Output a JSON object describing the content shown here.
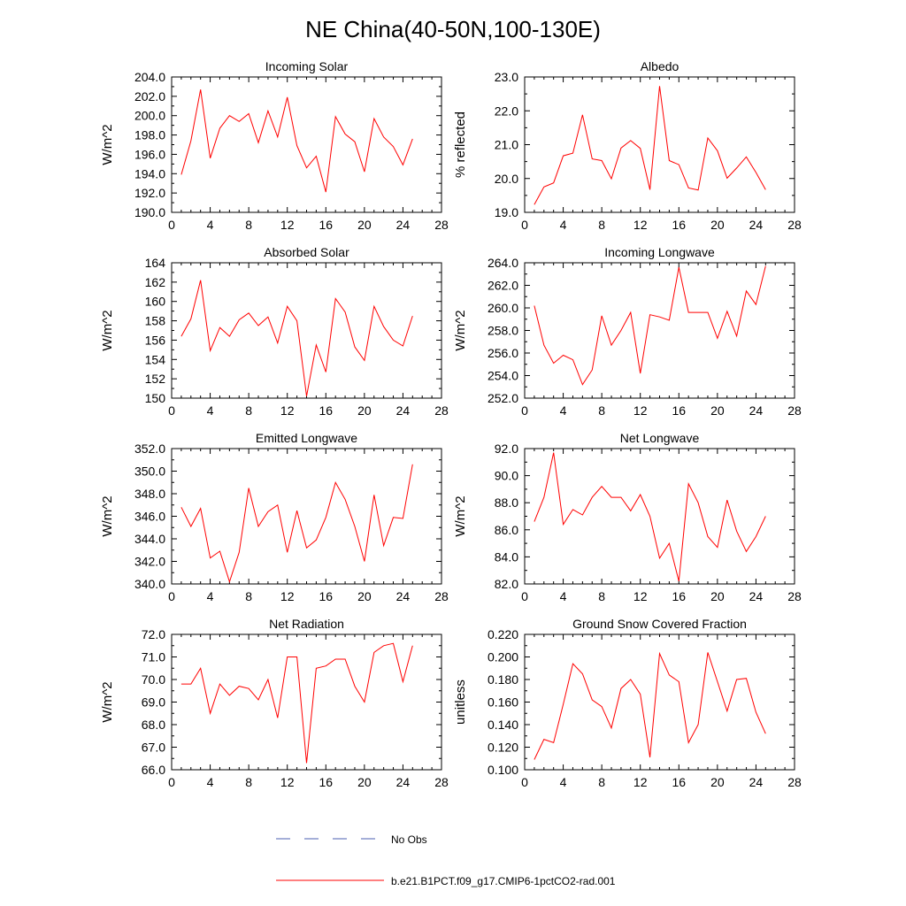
{
  "title": "NE China(40-50N,100-130E)",
  "colors": {
    "model": "#ff0000",
    "obs": "#4b5fb0",
    "axis": "#000000"
  },
  "legend": [
    {
      "label": "No Obs",
      "style": "dashed",
      "color": "#4b5fb0"
    },
    {
      "label": "b.e21.B1PCT.f09_g17.CMIP6-1pctCO2-rad.001",
      "style": "solid",
      "color": "#ff0000"
    }
  ],
  "chart_data": [
    {
      "type": "line",
      "title": "Incoming Solar",
      "xlabel": "",
      "ylabel": "W/m^2",
      "xlim": [
        0,
        28
      ],
      "ylim": [
        190,
        204
      ],
      "grid": false,
      "xticks": [
        "0",
        "4",
        "8",
        "12",
        "16",
        "20",
        "24",
        "28"
      ],
      "yticks": [
        "190.0",
        "192.0",
        "194.0",
        "196.0",
        "198.0",
        "200.0",
        "202.0",
        "204.0"
      ],
      "series": [
        {
          "x": [
            1,
            2,
            3,
            4,
            5,
            6,
            7,
            8,
            9,
            10,
            11,
            12,
            13,
            14,
            15,
            16,
            17,
            18,
            19,
            20,
            21,
            22,
            23,
            24,
            25
          ],
          "values": [
            193.9,
            197.4,
            202.7,
            195.6,
            198.7,
            200.0,
            199.4,
            200.2,
            197.2,
            200.5,
            197.8,
            201.9,
            196.9,
            194.6,
            195.8,
            192.1,
            199.9,
            198.1,
            197.3,
            194.2,
            199.7,
            197.8,
            196.8,
            194.9,
            197.6
          ]
        }
      ]
    },
    {
      "type": "line",
      "title": "Albedo",
      "xlabel": "",
      "ylabel": "% reflected",
      "xlim": [
        0,
        28
      ],
      "ylim": [
        19,
        23
      ],
      "grid": false,
      "xticks": [
        "0",
        "4",
        "8",
        "12",
        "16",
        "20",
        "24",
        "28"
      ],
      "yticks": [
        "19.0",
        "20.0",
        "21.0",
        "22.0",
        "23.0"
      ],
      "series": [
        {
          "x": [
            1,
            2,
            3,
            4,
            5,
            6,
            7,
            8,
            9,
            10,
            11,
            12,
            13,
            14,
            15,
            16,
            17,
            18,
            19,
            20,
            21,
            22,
            23,
            24,
            25
          ],
          "values": [
            19.23,
            19.75,
            19.87,
            20.67,
            20.75,
            21.88,
            20.58,
            20.53,
            19.99,
            20.9,
            21.12,
            20.89,
            19.67,
            22.73,
            20.53,
            20.41,
            19.72,
            19.66,
            21.2,
            20.82,
            20.01,
            20.31,
            20.64,
            20.18,
            19.67
          ]
        }
      ]
    },
    {
      "type": "line",
      "title": "Absorbed Solar",
      "xlabel": "",
      "ylabel": "W/m^2",
      "xlim": [
        0,
        28
      ],
      "ylim": [
        150,
        164
      ],
      "grid": false,
      "xticks": [
        "0",
        "4",
        "8",
        "12",
        "16",
        "20",
        "24",
        "28"
      ],
      "yticks": [
        "150",
        "152",
        "154",
        "156",
        "158",
        "160",
        "162",
        "164"
      ],
      "series": [
        {
          "x": [
            1,
            2,
            3,
            4,
            5,
            6,
            7,
            8,
            9,
            10,
            11,
            12,
            13,
            14,
            15,
            16,
            17,
            18,
            19,
            20,
            21,
            22,
            23,
            24,
            25
          ],
          "values": [
            156.4,
            158.2,
            162.2,
            154.9,
            157.3,
            156.4,
            158.1,
            158.8,
            157.5,
            158.4,
            155.7,
            159.5,
            158.0,
            150.2,
            155.5,
            152.7,
            160.3,
            158.9,
            155.3,
            153.9,
            159.5,
            157.4,
            156.0,
            155.4,
            158.5
          ]
        }
      ]
    },
    {
      "type": "line",
      "title": "Incoming Longwave",
      "xlabel": "",
      "ylabel": "W/m^2",
      "xlim": [
        0,
        28
      ],
      "ylim": [
        252,
        264
      ],
      "grid": false,
      "xticks": [
        "0",
        "4",
        "8",
        "12",
        "16",
        "20",
        "24",
        "28"
      ],
      "yticks": [
        "252.0",
        "254.0",
        "256.0",
        "258.0",
        "260.0",
        "262.0",
        "264.0"
      ],
      "series": [
        {
          "x": [
            1,
            2,
            3,
            4,
            5,
            6,
            7,
            8,
            9,
            10,
            11,
            12,
            13,
            14,
            15,
            16,
            17,
            18,
            19,
            20,
            21,
            22,
            23,
            24,
            25
          ],
          "values": [
            260.2,
            256.7,
            255.1,
            255.8,
            255.4,
            253.2,
            254.5,
            259.3,
            256.7,
            258.0,
            259.6,
            254.2,
            259.4,
            259.2,
            258.9,
            263.6,
            259.6,
            259.6,
            259.6,
            257.3,
            259.7,
            257.5,
            261.5,
            260.3,
            263.7
          ]
        }
      ]
    },
    {
      "type": "line",
      "title": "Emitted Longwave",
      "xlabel": "",
      "ylabel": "W/m^2",
      "xlim": [
        0,
        28
      ],
      "ylim": [
        340,
        352
      ],
      "grid": false,
      "xticks": [
        "0",
        "4",
        "8",
        "12",
        "16",
        "20",
        "24",
        "28"
      ],
      "yticks": [
        "340.0",
        "342.0",
        "344.0",
        "346.0",
        "348.0",
        "350.0",
        "352.0"
      ],
      "series": [
        {
          "x": [
            1,
            2,
            3,
            4,
            5,
            6,
            7,
            8,
            9,
            10,
            11,
            12,
            13,
            14,
            15,
            16,
            17,
            18,
            19,
            20,
            21,
            22,
            23,
            24,
            25
          ],
          "values": [
            346.8,
            345.1,
            346.7,
            342.3,
            342.9,
            340.2,
            342.8,
            348.5,
            345.1,
            346.4,
            347.0,
            342.8,
            346.5,
            343.2,
            343.9,
            345.9,
            349.0,
            347.5,
            345.1,
            342.0,
            347.9,
            343.4,
            345.9,
            345.8,
            350.6
          ]
        }
      ]
    },
    {
      "type": "line",
      "title": "Net Longwave",
      "xlabel": "",
      "ylabel": "W/m^2",
      "xlim": [
        0,
        28
      ],
      "ylim": [
        82,
        92
      ],
      "grid": false,
      "xticks": [
        "0",
        "4",
        "8",
        "12",
        "16",
        "20",
        "24",
        "28"
      ],
      "yticks": [
        "82.0",
        "84.0",
        "86.0",
        "88.0",
        "90.0",
        "92.0"
      ],
      "series": [
        {
          "x": [
            1,
            2,
            3,
            4,
            5,
            6,
            7,
            8,
            9,
            10,
            11,
            12,
            13,
            14,
            15,
            16,
            17,
            18,
            19,
            20,
            21,
            22,
            23,
            24,
            25
          ],
          "values": [
            86.6,
            88.4,
            91.7,
            86.4,
            87.5,
            87.1,
            88.4,
            89.2,
            88.4,
            88.4,
            87.4,
            88.6,
            87.0,
            83.9,
            85.0,
            82.2,
            89.4,
            88.0,
            85.5,
            84.7,
            88.2,
            85.9,
            84.4,
            85.5,
            87.0
          ]
        }
      ]
    },
    {
      "type": "line",
      "title": "Net Radiation",
      "xlabel": "",
      "ylabel": "W/m^2",
      "xlim": [
        0,
        28
      ],
      "ylim": [
        66,
        72
      ],
      "grid": false,
      "xticks": [
        "0",
        "4",
        "8",
        "12",
        "16",
        "20",
        "24",
        "28"
      ],
      "yticks": [
        "66.0",
        "67.0",
        "68.0",
        "69.0",
        "70.0",
        "71.0",
        "72.0"
      ],
      "series": [
        {
          "x": [
            1,
            2,
            3,
            4,
            5,
            6,
            7,
            8,
            9,
            10,
            11,
            12,
            13,
            14,
            15,
            16,
            17,
            18,
            19,
            20,
            21,
            22,
            23,
            24,
            25
          ],
          "values": [
            69.8,
            69.8,
            70.5,
            68.5,
            69.8,
            69.3,
            69.7,
            69.6,
            69.1,
            70.0,
            68.3,
            71.0,
            71.0,
            66.3,
            70.5,
            70.6,
            70.9,
            70.9,
            69.7,
            69.0,
            71.2,
            71.5,
            71.6,
            69.9,
            71.5
          ]
        }
      ]
    },
    {
      "type": "line",
      "title": "Ground Snow Covered Fraction",
      "xlabel": "",
      "ylabel": "unitless",
      "xlim": [
        0,
        28
      ],
      "ylim": [
        0.1,
        0.22
      ],
      "grid": false,
      "xticks": [
        "0",
        "4",
        "8",
        "12",
        "16",
        "20",
        "24",
        "28"
      ],
      "yticks": [
        "0.100",
        "0.120",
        "0.140",
        "0.160",
        "0.180",
        "0.200",
        "0.220"
      ],
      "series": [
        {
          "x": [
            1,
            2,
            3,
            4,
            5,
            6,
            7,
            8,
            9,
            10,
            11,
            12,
            13,
            14,
            15,
            16,
            17,
            18,
            19,
            20,
            21,
            22,
            23,
            24,
            25
          ],
          "values": [
            0.109,
            0.127,
            0.124,
            0.158,
            0.194,
            0.185,
            0.162,
            0.156,
            0.137,
            0.172,
            0.18,
            0.167,
            0.111,
            0.203,
            0.184,
            0.178,
            0.124,
            0.14,
            0.204,
            0.178,
            0.152,
            0.18,
            0.181,
            0.151,
            0.132
          ]
        }
      ]
    }
  ]
}
